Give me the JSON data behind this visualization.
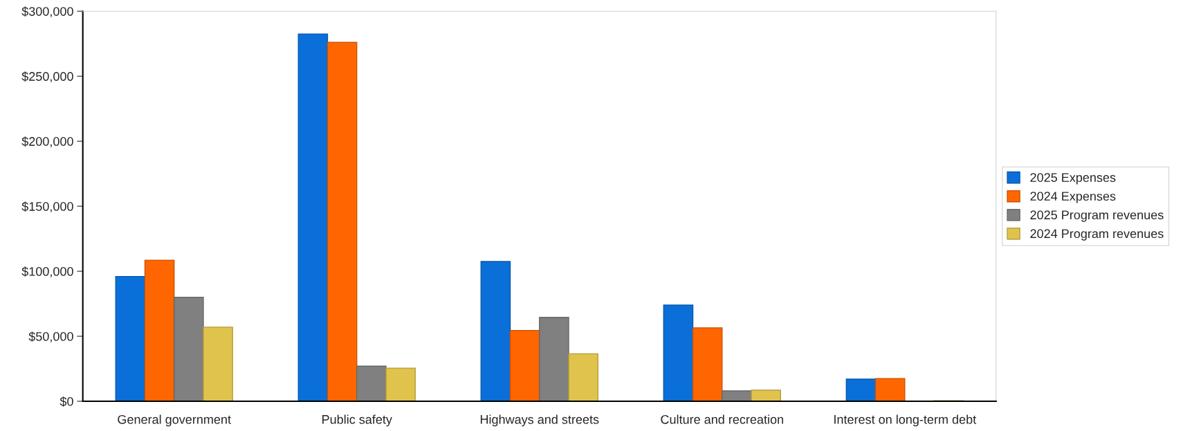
{
  "chart_data": {
    "type": "bar",
    "categories": [
      "General government",
      "Public safety",
      "Highways and streets",
      "Culture and recreation",
      "Interest on long-term debt"
    ],
    "series": [
      {
        "name": "2025 Expenses",
        "color": "#0a6fd8",
        "values": [
          96000,
          282500,
          107500,
          74000,
          17000
        ]
      },
      {
        "name": "2024 Expenses",
        "color": "#ff6600",
        "values": [
          108500,
          276000,
          54500,
          56500,
          17500
        ]
      },
      {
        "name": "2025 Program revenues",
        "color": "#808080",
        "values": [
          80000,
          27000,
          64500,
          8000,
          0
        ]
      },
      {
        "name": "2024 Program revenues",
        "color": "#e0c34c",
        "values": [
          57000,
          25500,
          36500,
          8500,
          500
        ]
      }
    ],
    "ylim": [
      0,
      300000
    ],
    "yticks": [
      {
        "value": 0,
        "label": "$0"
      },
      {
        "value": 50000,
        "label": "$50,000"
      },
      {
        "value": 100000,
        "label": "$100,000"
      },
      {
        "value": 150000,
        "label": "$150,000"
      },
      {
        "value": 200000,
        "label": "$200,000"
      },
      {
        "value": 250000,
        "label": "$250,000"
      },
      {
        "value": 300000,
        "label": "$300,000"
      }
    ],
    "grid": false,
    "legend": "right"
  }
}
